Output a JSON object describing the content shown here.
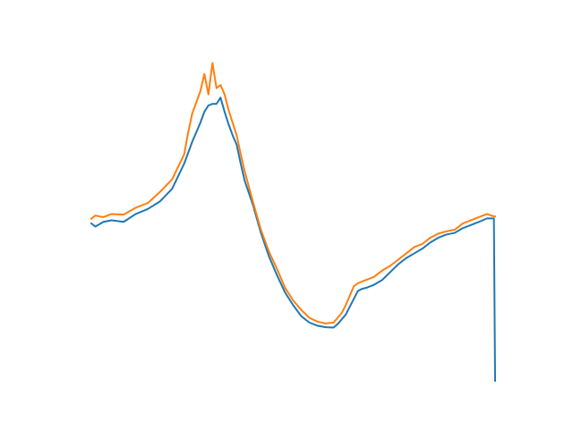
{
  "chart_data": {
    "type": "line",
    "axes_visible": false,
    "grid": false,
    "xlim": [
      0,
      100
    ],
    "ylim": [
      0,
      100
    ],
    "series": [
      {
        "color": "#1f77b4",
        "x": [
          0,
          1,
          3,
          5,
          8,
          11,
          14,
          17,
          20,
          23,
          25,
          27,
          28,
          29,
          30,
          31,
          32,
          33,
          34,
          35,
          36,
          37,
          38,
          40,
          42,
          44,
          46,
          48,
          50,
          52,
          54,
          56,
          58,
          60,
          61,
          62,
          63,
          64,
          65,
          66,
          67,
          68,
          70,
          72,
          74,
          76,
          78,
          80,
          82,
          84,
          86,
          88,
          90,
          92,
          94,
          96,
          98,
          99,
          99.7,
          100
        ],
        "y": [
          50,
          49,
          50.5,
          51,
          50.5,
          53,
          54.6,
          57,
          61,
          69,
          76,
          82,
          85.5,
          87.5,
          88,
          88,
          90,
          85.5,
          81.5,
          78,
          75,
          69,
          63.5,
          56,
          47,
          39.5,
          33.5,
          28,
          24,
          20.5,
          18.5,
          17.5,
          17,
          16.9,
          18,
          19.5,
          21,
          23.5,
          26,
          28.5,
          29.2,
          29.5,
          30.5,
          32,
          34.5,
          37,
          39,
          40.5,
          42,
          44,
          45.5,
          46.5,
          47,
          48.5,
          49.5,
          50.5,
          51.6,
          51.6,
          51.6,
          0
        ]
      },
      {
        "color": "#ff7f0e",
        "x": [
          0,
          1,
          3,
          5,
          8,
          11,
          14,
          17,
          20,
          23,
          24,
          25,
          26,
          27,
          28,
          29,
          30,
          31,
          32,
          33,
          34,
          35,
          36,
          37,
          38,
          40,
          42,
          44,
          46,
          48,
          50,
          52,
          54,
          56,
          58,
          60,
          61,
          62,
          63,
          64,
          65,
          66,
          67,
          68,
          70,
          72,
          74,
          76,
          78,
          80,
          82,
          84,
          86,
          88,
          90,
          92,
          94,
          96,
          98,
          99,
          100
        ],
        "y": [
          51.5,
          52.5,
          52,
          53,
          52.8,
          55,
          56.5,
          60,
          64,
          72,
          79,
          85,
          88.5,
          92,
          97.5,
          91,
          101,
          93,
          94,
          91,
          86,
          82,
          78,
          72,
          66.5,
          57,
          48,
          41,
          35.5,
          29.5,
          25.5,
          22.5,
          20,
          18.8,
          18.2,
          18.5,
          20,
          21.5,
          24,
          27,
          30,
          31,
          31.5,
          32,
          33,
          35,
          36.5,
          38.5,
          40.5,
          42.5,
          43.5,
          45.5,
          46.8,
          47.5,
          48,
          50,
          51,
          52,
          53,
          52.5,
          52.2
        ]
      }
    ]
  }
}
